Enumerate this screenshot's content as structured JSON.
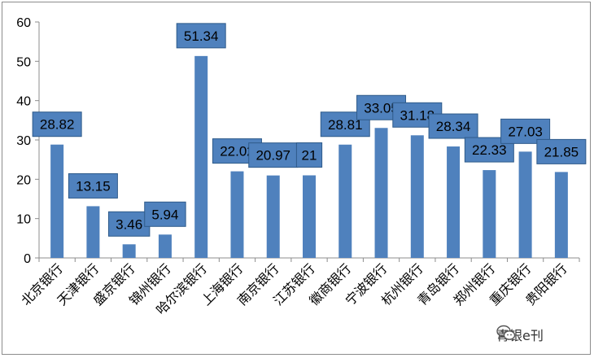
{
  "chart_data": {
    "type": "bar",
    "title": "",
    "xlabel": "",
    "ylabel": "",
    "categories": [
      "北京银行",
      "天津银行",
      "盛京银行",
      "锦州银行",
      "哈尔滨银行",
      "上海银行",
      "南京银行",
      "江苏银行",
      "徽商银行",
      "宁波银行",
      "杭州银行",
      "青岛银行",
      "郑州银行",
      "重庆银行",
      "贵阳银行"
    ],
    "values": [
      28.82,
      13.15,
      3.46,
      5.94,
      51.34,
      22.02,
      20.97,
      21,
      28.81,
      33.05,
      31.18,
      28.34,
      22.33,
      27.03,
      21.85
    ],
    "data_labels": [
      "28.82",
      "13.15",
      "3.46",
      "5.94",
      "51.34",
      "22.02",
      "20.97",
      "21",
      "28.81",
      "33.05",
      "31.18",
      "28.34",
      "22.33",
      "27.03",
      "21.85"
    ],
    "ylim": [
      0,
      60
    ],
    "yticks": [
      0,
      10,
      20,
      30,
      40,
      50,
      60
    ],
    "grid": false,
    "legend": "none",
    "bar_color": "#4f81bd",
    "label_box_color": "#4f81bd",
    "label_box_border": "#2f5b8a"
  },
  "watermark": {
    "text": "青银e刊",
    "icon": "wechat-icon"
  }
}
